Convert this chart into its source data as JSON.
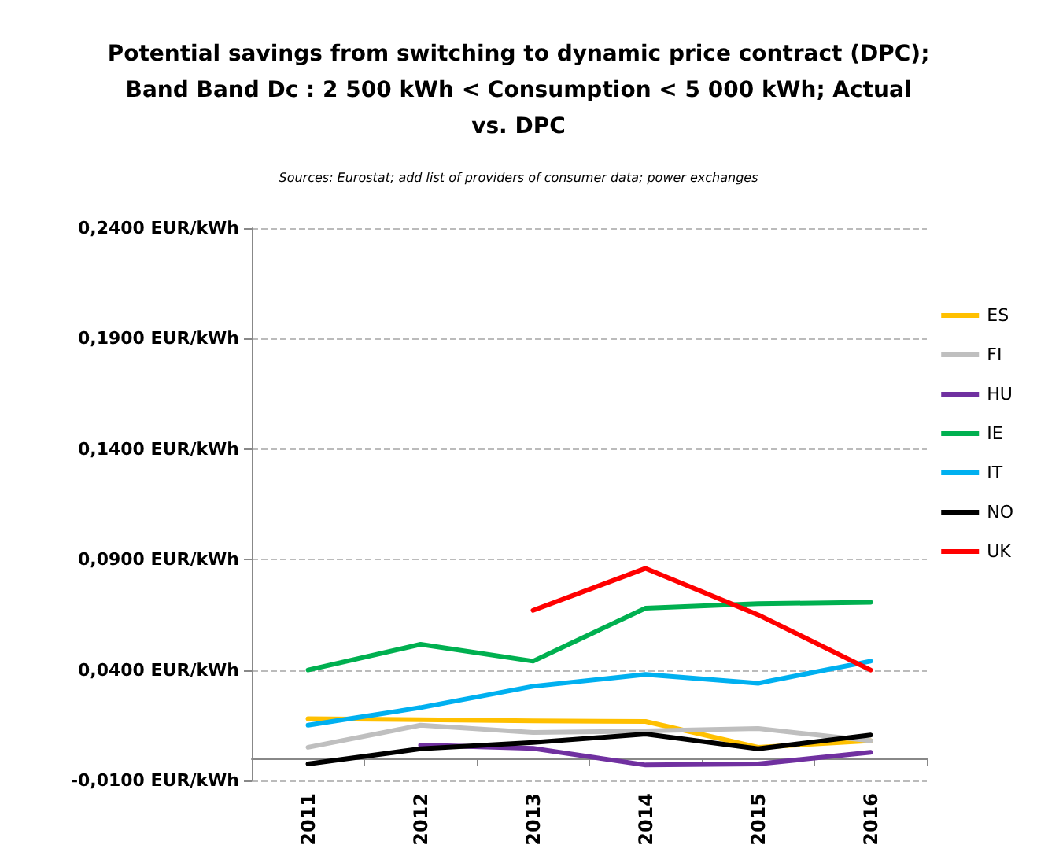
{
  "chart_data": {
    "type": "line",
    "title": "Potential savings from switching to dynamic price contract (DPC);\nBand Band Dc : 2 500 kWh < Consumption < 5 000 kWh; Actual\nvs. DPC",
    "subtitle": "Sources: Eurostat; add list of providers of consumer data; power exchanges",
    "categories": [
      "2011",
      "2012",
      "2013",
      "2014",
      "2015",
      "2016"
    ],
    "series": [
      {
        "name": "ES",
        "color": "#ffc000",
        "values": [
          0.018,
          0.0175,
          0.017,
          0.0167,
          0.005,
          0.008
        ]
      },
      {
        "name": "FI",
        "color": "#bfbfbf",
        "values": [
          0.005,
          0.015,
          0.0117,
          0.0124,
          0.0135,
          0.008
        ]
      },
      {
        "name": "HU",
        "color": "#7030a0",
        "values": [
          null,
          0.006,
          0.0045,
          -0.003,
          -0.0025,
          0.0027
        ]
      },
      {
        "name": "IE",
        "color": "#00b050",
        "values": [
          0.04,
          0.0516,
          0.044,
          0.068,
          0.07,
          0.0707
        ]
      },
      {
        "name": "IT",
        "color": "#00b0f0",
        "values": [
          0.015,
          0.023,
          0.0326,
          0.038,
          0.034,
          0.044
        ]
      },
      {
        "name": "NO",
        "color": "#000000",
        "values": [
          -0.0025,
          0.0043,
          0.0072,
          0.011,
          0.0043,
          0.0106
        ]
      },
      {
        "name": "UK",
        "color": "#ff0000",
        "values": [
          null,
          null,
          0.067,
          0.086,
          0.065,
          0.04
        ]
      }
    ],
    "ylim": [
      -0.01,
      0.24
    ],
    "yticks": [
      {
        "value": -0.01,
        "label": "-0,0100 EUR/kWh"
      },
      {
        "value": 0.04,
        "label": "0,0400 EUR/kWh"
      },
      {
        "value": 0.09,
        "label": "0,0900 EUR/kWh"
      },
      {
        "value": 0.14,
        "label": "0,1400 EUR/kWh"
      },
      {
        "value": 0.19,
        "label": "0,1900 EUR/kWh"
      },
      {
        "value": 0.24,
        "label": "0,2400 EUR/kWh"
      }
    ],
    "grid": "y",
    "legend": "right",
    "marker": "none",
    "line_style": "solid"
  }
}
